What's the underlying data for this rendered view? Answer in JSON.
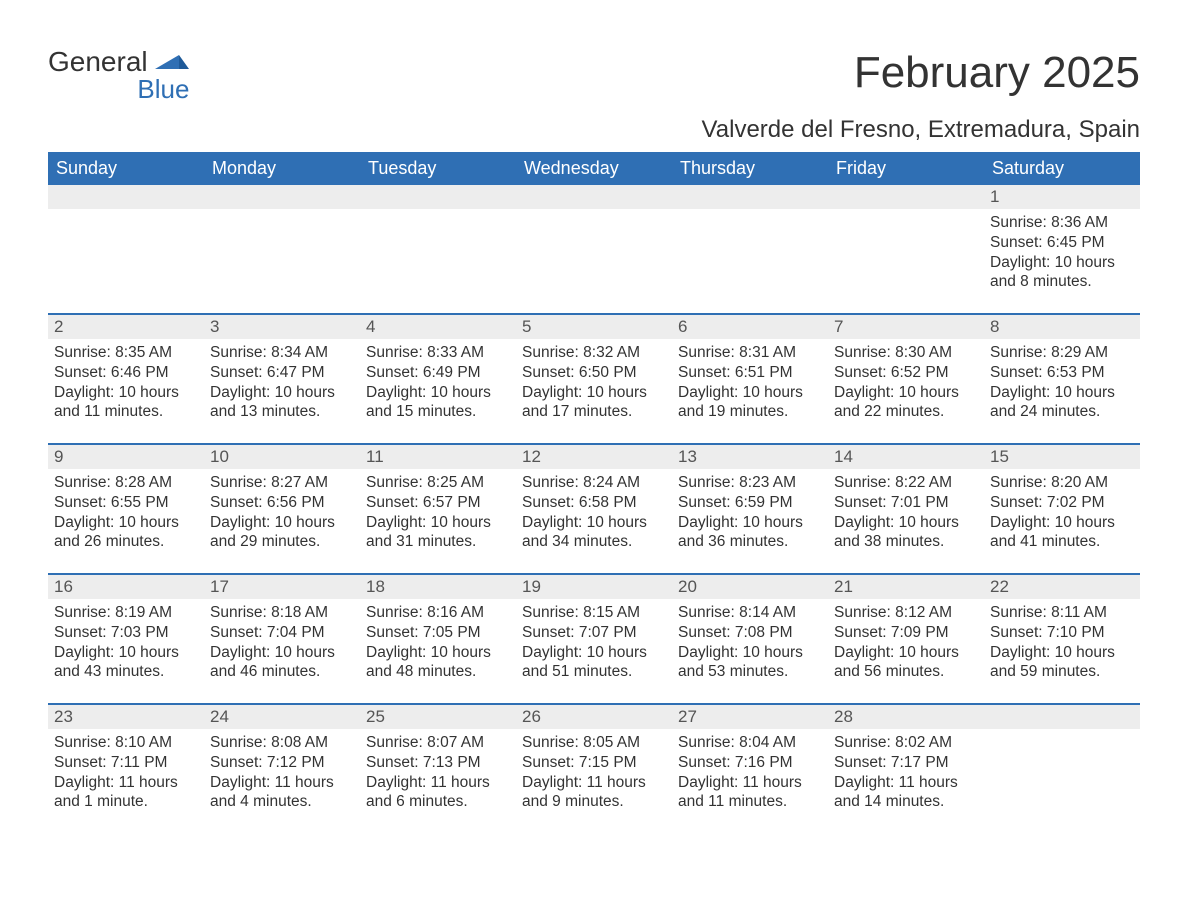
{
  "logo": {
    "word1": "General",
    "word2": "Blue",
    "accent_color": "#2f6fb4"
  },
  "title": "February 2025",
  "location": "Valverde del Fresno, Extremadura, Spain",
  "colors": {
    "header_bg": "#2f6fb4",
    "header_fg": "#ffffff",
    "daynum_bg": "#ededed",
    "daynum_border": "#2f6fb4",
    "text": "#333333",
    "page_bg": "#ffffff"
  },
  "typography": {
    "title_fontsize": 44,
    "location_fontsize": 24,
    "dayheader_fontsize": 18,
    "daynum_fontsize": 17,
    "body_fontsize": 15.5,
    "font_family": "Arial"
  },
  "day_headers": [
    "Sunday",
    "Monday",
    "Tuesday",
    "Wednesday",
    "Thursday",
    "Friday",
    "Saturday"
  ],
  "weeks": [
    [
      null,
      null,
      null,
      null,
      null,
      null,
      {
        "n": "1",
        "sunrise": "Sunrise: 8:36 AM",
        "sunset": "Sunset: 6:45 PM",
        "daylight": "Daylight: 10 hours and 8 minutes."
      }
    ],
    [
      {
        "n": "2",
        "sunrise": "Sunrise: 8:35 AM",
        "sunset": "Sunset: 6:46 PM",
        "daylight": "Daylight: 10 hours and 11 minutes."
      },
      {
        "n": "3",
        "sunrise": "Sunrise: 8:34 AM",
        "sunset": "Sunset: 6:47 PM",
        "daylight": "Daylight: 10 hours and 13 minutes."
      },
      {
        "n": "4",
        "sunrise": "Sunrise: 8:33 AM",
        "sunset": "Sunset: 6:49 PM",
        "daylight": "Daylight: 10 hours and 15 minutes."
      },
      {
        "n": "5",
        "sunrise": "Sunrise: 8:32 AM",
        "sunset": "Sunset: 6:50 PM",
        "daylight": "Daylight: 10 hours and 17 minutes."
      },
      {
        "n": "6",
        "sunrise": "Sunrise: 8:31 AM",
        "sunset": "Sunset: 6:51 PM",
        "daylight": "Daylight: 10 hours and 19 minutes."
      },
      {
        "n": "7",
        "sunrise": "Sunrise: 8:30 AM",
        "sunset": "Sunset: 6:52 PM",
        "daylight": "Daylight: 10 hours and 22 minutes."
      },
      {
        "n": "8",
        "sunrise": "Sunrise: 8:29 AM",
        "sunset": "Sunset: 6:53 PM",
        "daylight": "Daylight: 10 hours and 24 minutes."
      }
    ],
    [
      {
        "n": "9",
        "sunrise": "Sunrise: 8:28 AM",
        "sunset": "Sunset: 6:55 PM",
        "daylight": "Daylight: 10 hours and 26 minutes."
      },
      {
        "n": "10",
        "sunrise": "Sunrise: 8:27 AM",
        "sunset": "Sunset: 6:56 PM",
        "daylight": "Daylight: 10 hours and 29 minutes."
      },
      {
        "n": "11",
        "sunrise": "Sunrise: 8:25 AM",
        "sunset": "Sunset: 6:57 PM",
        "daylight": "Daylight: 10 hours and 31 minutes."
      },
      {
        "n": "12",
        "sunrise": "Sunrise: 8:24 AM",
        "sunset": "Sunset: 6:58 PM",
        "daylight": "Daylight: 10 hours and 34 minutes."
      },
      {
        "n": "13",
        "sunrise": "Sunrise: 8:23 AM",
        "sunset": "Sunset: 6:59 PM",
        "daylight": "Daylight: 10 hours and 36 minutes."
      },
      {
        "n": "14",
        "sunrise": "Sunrise: 8:22 AM",
        "sunset": "Sunset: 7:01 PM",
        "daylight": "Daylight: 10 hours and 38 minutes."
      },
      {
        "n": "15",
        "sunrise": "Sunrise: 8:20 AM",
        "sunset": "Sunset: 7:02 PM",
        "daylight": "Daylight: 10 hours and 41 minutes."
      }
    ],
    [
      {
        "n": "16",
        "sunrise": "Sunrise: 8:19 AM",
        "sunset": "Sunset: 7:03 PM",
        "daylight": "Daylight: 10 hours and 43 minutes."
      },
      {
        "n": "17",
        "sunrise": "Sunrise: 8:18 AM",
        "sunset": "Sunset: 7:04 PM",
        "daylight": "Daylight: 10 hours and 46 minutes."
      },
      {
        "n": "18",
        "sunrise": "Sunrise: 8:16 AM",
        "sunset": "Sunset: 7:05 PM",
        "daylight": "Daylight: 10 hours and 48 minutes."
      },
      {
        "n": "19",
        "sunrise": "Sunrise: 8:15 AM",
        "sunset": "Sunset: 7:07 PM",
        "daylight": "Daylight: 10 hours and 51 minutes."
      },
      {
        "n": "20",
        "sunrise": "Sunrise: 8:14 AM",
        "sunset": "Sunset: 7:08 PM",
        "daylight": "Daylight: 10 hours and 53 minutes."
      },
      {
        "n": "21",
        "sunrise": "Sunrise: 8:12 AM",
        "sunset": "Sunset: 7:09 PM",
        "daylight": "Daylight: 10 hours and 56 minutes."
      },
      {
        "n": "22",
        "sunrise": "Sunrise: 8:11 AM",
        "sunset": "Sunset: 7:10 PM",
        "daylight": "Daylight: 10 hours and 59 minutes."
      }
    ],
    [
      {
        "n": "23",
        "sunrise": "Sunrise: 8:10 AM",
        "sunset": "Sunset: 7:11 PM",
        "daylight": "Daylight: 11 hours and 1 minute."
      },
      {
        "n": "24",
        "sunrise": "Sunrise: 8:08 AM",
        "sunset": "Sunset: 7:12 PM",
        "daylight": "Daylight: 11 hours and 4 minutes."
      },
      {
        "n": "25",
        "sunrise": "Sunrise: 8:07 AM",
        "sunset": "Sunset: 7:13 PM",
        "daylight": "Daylight: 11 hours and 6 minutes."
      },
      {
        "n": "26",
        "sunrise": "Sunrise: 8:05 AM",
        "sunset": "Sunset: 7:15 PM",
        "daylight": "Daylight: 11 hours and 9 minutes."
      },
      {
        "n": "27",
        "sunrise": "Sunrise: 8:04 AM",
        "sunset": "Sunset: 7:16 PM",
        "daylight": "Daylight: 11 hours and 11 minutes."
      },
      {
        "n": "28",
        "sunrise": "Sunrise: 8:02 AM",
        "sunset": "Sunset: 7:17 PM",
        "daylight": "Daylight: 11 hours and 14 minutes."
      },
      null
    ]
  ]
}
